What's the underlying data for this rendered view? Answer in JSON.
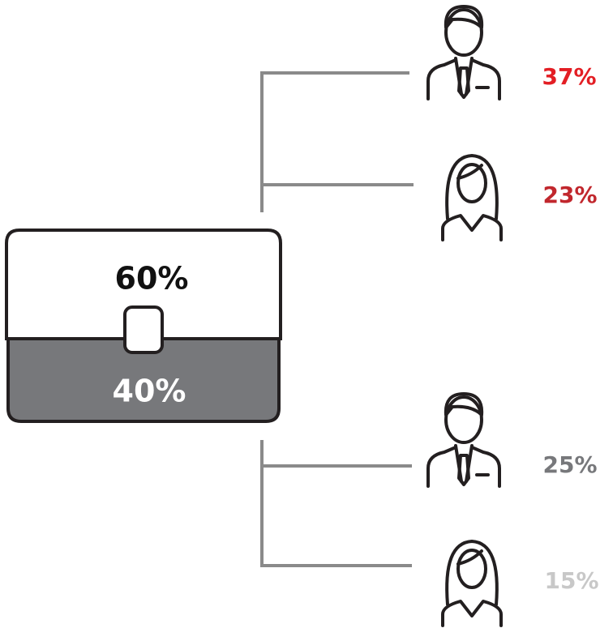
{
  "briefcase": {
    "top_label": "60%",
    "bottom_label": "40%"
  },
  "people": [
    {
      "label": "37%"
    },
    {
      "label": "23%"
    },
    {
      "label": "25%"
    },
    {
      "label": "15%"
    }
  ]
}
